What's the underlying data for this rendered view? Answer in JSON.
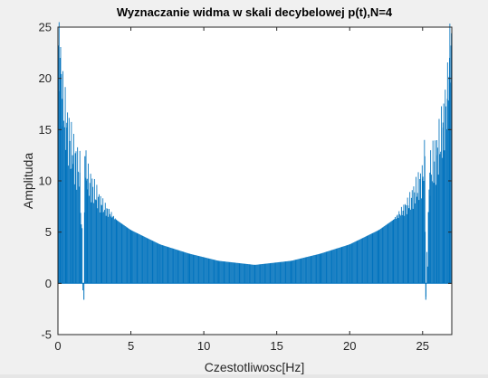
{
  "chart_data": {
    "type": "bar",
    "title": "Wyznaczanie widma w skali decybelowej p(t),N=4",
    "xlabel": "Czestotliwosc[Hz]",
    "ylabel": "Amplituda",
    "xlim": [
      0,
      27
    ],
    "ylim": [
      -5,
      25
    ],
    "xticks": [
      "0",
      "5",
      "10",
      "15",
      "20",
      "25"
    ],
    "yticks": [
      "-5",
      "0",
      "5",
      "10",
      "15",
      "20",
      "25"
    ],
    "grid": false,
    "legend": "none",
    "bar_color": "#0072bd",
    "spectrum": {
      "sample_rate_hz": 27,
      "n_bins": 512,
      "baseline": 0,
      "points": [
        {
          "x": 0.05,
          "y": 23.2
        },
        {
          "x": 0.15,
          "y": 22.0
        },
        {
          "x": 0.3,
          "y": 18.0
        },
        {
          "x": 0.6,
          "y": 15.2
        },
        {
          "x": 1.0,
          "y": 12.5
        },
        {
          "x": 1.5,
          "y": 10.8
        },
        {
          "x": 1.78,
          "y": -1.6
        },
        {
          "x": 1.85,
          "y": 12.4
        },
        {
          "x": 2.0,
          "y": 10.2
        },
        {
          "x": 3.0,
          "y": 7.6
        },
        {
          "x": 4.0,
          "y": 6.2
        },
        {
          "x": 5.0,
          "y": 5.2
        },
        {
          "x": 7.0,
          "y": 3.8
        },
        {
          "x": 9.0,
          "y": 2.9
        },
        {
          "x": 11.0,
          "y": 2.2
        },
        {
          "x": 13.5,
          "y": 1.8
        },
        {
          "x": 16.0,
          "y": 2.2
        },
        {
          "x": 18.0,
          "y": 2.9
        },
        {
          "x": 20.0,
          "y": 3.8
        },
        {
          "x": 22.0,
          "y": 5.2
        },
        {
          "x": 23.0,
          "y": 6.2
        },
        {
          "x": 24.0,
          "y": 7.6
        },
        {
          "x": 25.0,
          "y": 10.2
        },
        {
          "x": 25.15,
          "y": 12.4
        },
        {
          "x": 25.22,
          "y": -1.6
        },
        {
          "x": 25.5,
          "y": 10.8
        },
        {
          "x": 26.0,
          "y": 12.5
        },
        {
          "x": 26.4,
          "y": 15.2
        },
        {
          "x": 26.7,
          "y": 18.0
        },
        {
          "x": 26.85,
          "y": 22.0
        },
        {
          "x": 26.95,
          "y": 23.2
        }
      ]
    }
  }
}
